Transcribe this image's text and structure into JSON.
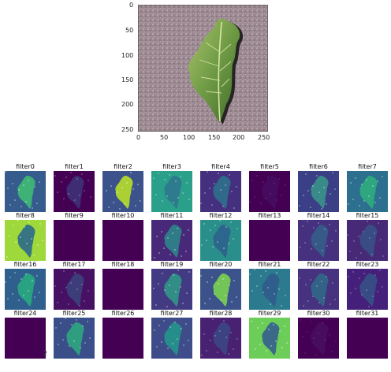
{
  "top_plot": {
    "x_ticks": [
      "0",
      "50",
      "100",
      "150",
      "200",
      "250"
    ],
    "y_ticks": [
      "0",
      "50",
      "100",
      "150",
      "200",
      "250"
    ],
    "background_color": "#9f8a92",
    "leaf_color": "#6f9a45",
    "shadow_color": "#2c2a2b"
  },
  "grid": {
    "filters": [
      {
        "title": "filter0",
        "base": "#355c8c",
        "blob": "#3fbf73",
        "fade": 0.85
      },
      {
        "title": "filter1",
        "base": "#440154",
        "blob": "#3b528b",
        "fade": 0.55
      },
      {
        "title": "filter2",
        "base": "#3b528b",
        "blob": "#b7de2a",
        "fade": 0.9
      },
      {
        "title": "filter3",
        "base": "#2a9f8a",
        "blob": "#2f6f8e",
        "fade": 0.75
      },
      {
        "title": "filter4",
        "base": "#45307f",
        "blob": "#2a7c8e",
        "fade": 0.75
      },
      {
        "title": "filter5",
        "base": "#440154",
        "blob": "#472d7b",
        "fade": 0.25
      },
      {
        "title": "filter6",
        "base": "#3b3f86",
        "blob": "#3aa68a",
        "fade": 0.75
      },
      {
        "title": "filter7",
        "base": "#2c6f8e",
        "blob": "#2fb47c",
        "fade": 0.8
      },
      {
        "title": "filter8",
        "base": "#9fd83a",
        "blob": "#2b6a8c",
        "fade": 0.9
      },
      {
        "title": "filter9",
        "base": "#440154",
        "blob": "#440154",
        "fade": 0.0
      },
      {
        "title": "filter10",
        "base": "#440154",
        "blob": "#440154",
        "fade": 0.0
      },
      {
        "title": "filter11",
        "base": "#482878",
        "blob": "#2c8a8a",
        "fade": 0.85
      },
      {
        "title": "filter12",
        "base": "#2a8f8a",
        "blob": "#2e5b8c",
        "fade": 0.8
      },
      {
        "title": "filter13",
        "base": "#440154",
        "blob": "#440154",
        "fade": 0.0
      },
      {
        "title": "filter14",
        "base": "#46317e",
        "blob": "#2b748e",
        "fade": 0.6
      },
      {
        "title": "filter15",
        "base": "#462a78",
        "blob": "#31688e",
        "fade": 0.55
      },
      {
        "title": "filter16",
        "base": "#2f5f8c",
        "blob": "#28ae80",
        "fade": 0.85
      },
      {
        "title": "filter17",
        "base": "#471163",
        "blob": "#33638d",
        "fade": 0.55
      },
      {
        "title": "filter18",
        "base": "#440154",
        "blob": "#440154",
        "fade": 0.0
      },
      {
        "title": "filter19",
        "base": "#433a84",
        "blob": "#2e9c86",
        "fade": 0.85
      },
      {
        "title": "filter20",
        "base": "#3b528b",
        "blob": "#7ad151",
        "fade": 0.9
      },
      {
        "title": "filter21",
        "base": "#2c7a8e",
        "blob": "#31568c",
        "fade": 0.8
      },
      {
        "title": "filter22",
        "base": "#46327e",
        "blob": "#26828e",
        "fade": 0.6
      },
      {
        "title": "filter23",
        "base": "#45207a",
        "blob": "#2c708e",
        "fade": 0.55
      },
      {
        "title": "filter24",
        "base": "#440154",
        "blob": "#440154",
        "fade": 0.0
      },
      {
        "title": "filter25",
        "base": "#3a4f8a",
        "blob": "#2db27d",
        "fade": 0.8
      },
      {
        "title": "filter26",
        "base": "#440154",
        "blob": "#440154",
        "fade": 0.0
      },
      {
        "title": "filter27",
        "base": "#3e4c8a",
        "blob": "#1f9e89",
        "fade": 0.8
      },
      {
        "title": "filter28",
        "base": "#482173",
        "blob": "#375a8c",
        "fade": 0.6
      },
      {
        "title": "filter29",
        "base": "#6cce59",
        "blob": "#355f8d",
        "fade": 0.9
      },
      {
        "title": "filter30",
        "base": "#440154",
        "blob": "#5c3c8c",
        "fade": 0.2
      },
      {
        "title": "filter31",
        "base": "#440154",
        "blob": "#440154",
        "fade": 0.0
      }
    ]
  },
  "stray_text": "2"
}
